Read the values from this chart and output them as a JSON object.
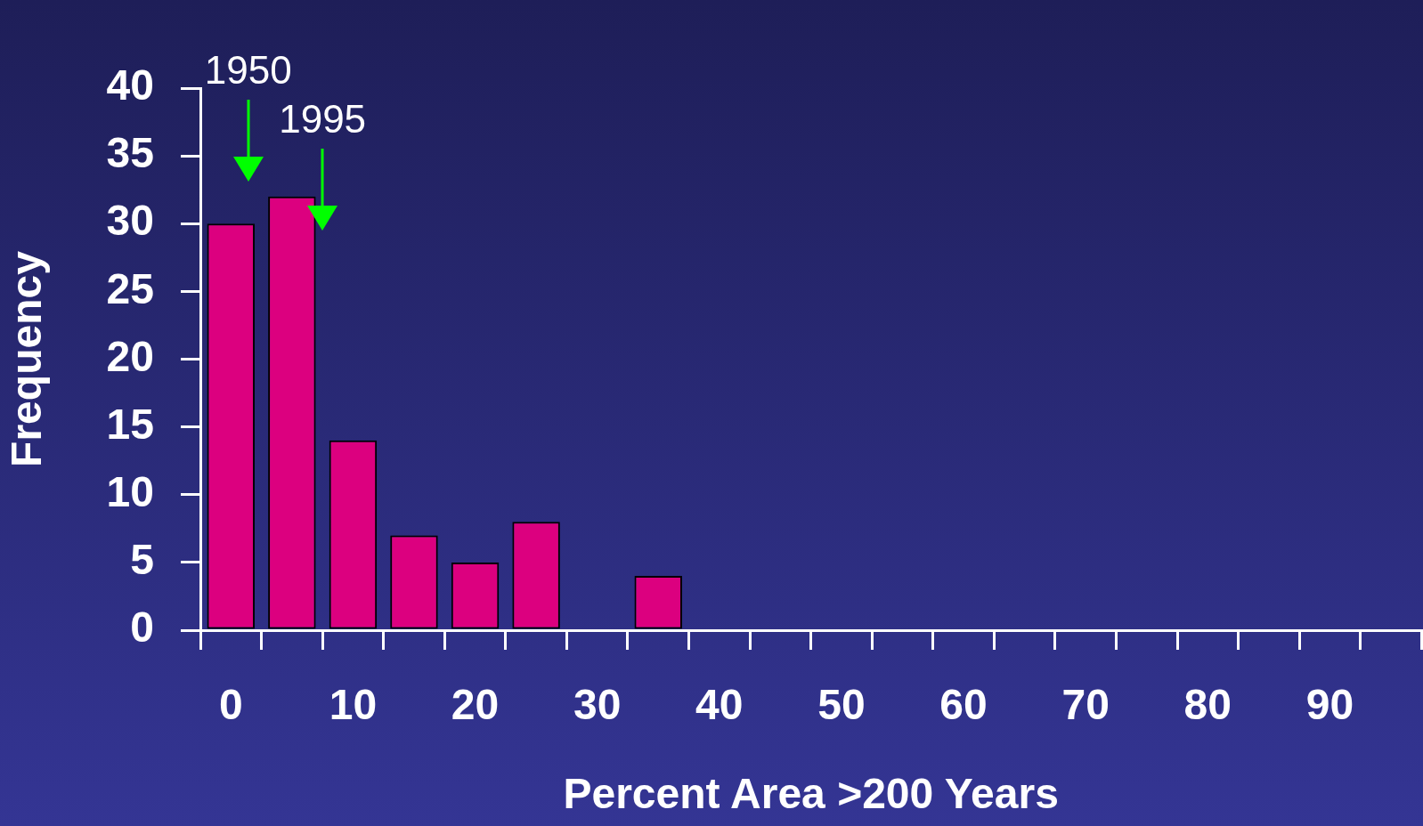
{
  "chart_data": {
    "type": "bar",
    "xlabel": "Percent Area >200 Years",
    "ylabel": "Frequency",
    "categories": [
      "0",
      null,
      "10",
      null,
      "20",
      null,
      "30",
      null,
      "40",
      null,
      "50",
      null,
      "60",
      null,
      "70",
      null,
      "80",
      null,
      "90",
      null
    ],
    "values": [
      30,
      32,
      14,
      7,
      5,
      8,
      0,
      4,
      0,
      0,
      0,
      0,
      0,
      0,
      0,
      0,
      0,
      0,
      0,
      0
    ],
    "color": "#dc007f",
    "ylim": [
      0,
      40
    ],
    "yticks": [
      0,
      5,
      10,
      15,
      20,
      25,
      30,
      35,
      40
    ],
    "grid": false,
    "legend": false,
    "annotations": [
      "1950",
      "1995"
    ]
  }
}
